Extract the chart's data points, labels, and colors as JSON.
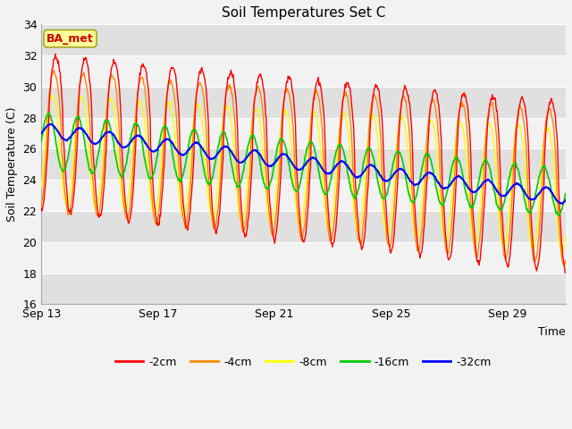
{
  "title": "Soil Temperatures Set C",
  "xlabel": "Time",
  "ylabel": "Soil Temperature (C)",
  "ylim": [
    16,
    34
  ],
  "xtick_labels": [
    "Sep 13",
    "Sep 17",
    "Sep 21",
    "Sep 25",
    "Sep 29"
  ],
  "xtick_positions": [
    0,
    4,
    8,
    12,
    16
  ],
  "n_days": 18,
  "points_per_day": 48,
  "bg_color": "#f2f2f2",
  "plot_bg_light": "#f2f2f2",
  "plot_bg_dark": "#e0e0e0",
  "grid_color": "#ffffff",
  "line_colors": {
    "-2cm": "#ff0000",
    "-4cm": "#ff8800",
    "-8cm": "#ffff00",
    "-16cm": "#00cc00",
    "-32cm": "#0000ff"
  },
  "legend_labels": [
    "-2cm",
    "-4cm",
    "-8cm",
    "-16cm",
    "-32cm"
  ],
  "annotation_text": "BA_met",
  "annotation_color": "#cc0000",
  "annotation_bg": "#ffff99",
  "annotation_edge": "#999900"
}
